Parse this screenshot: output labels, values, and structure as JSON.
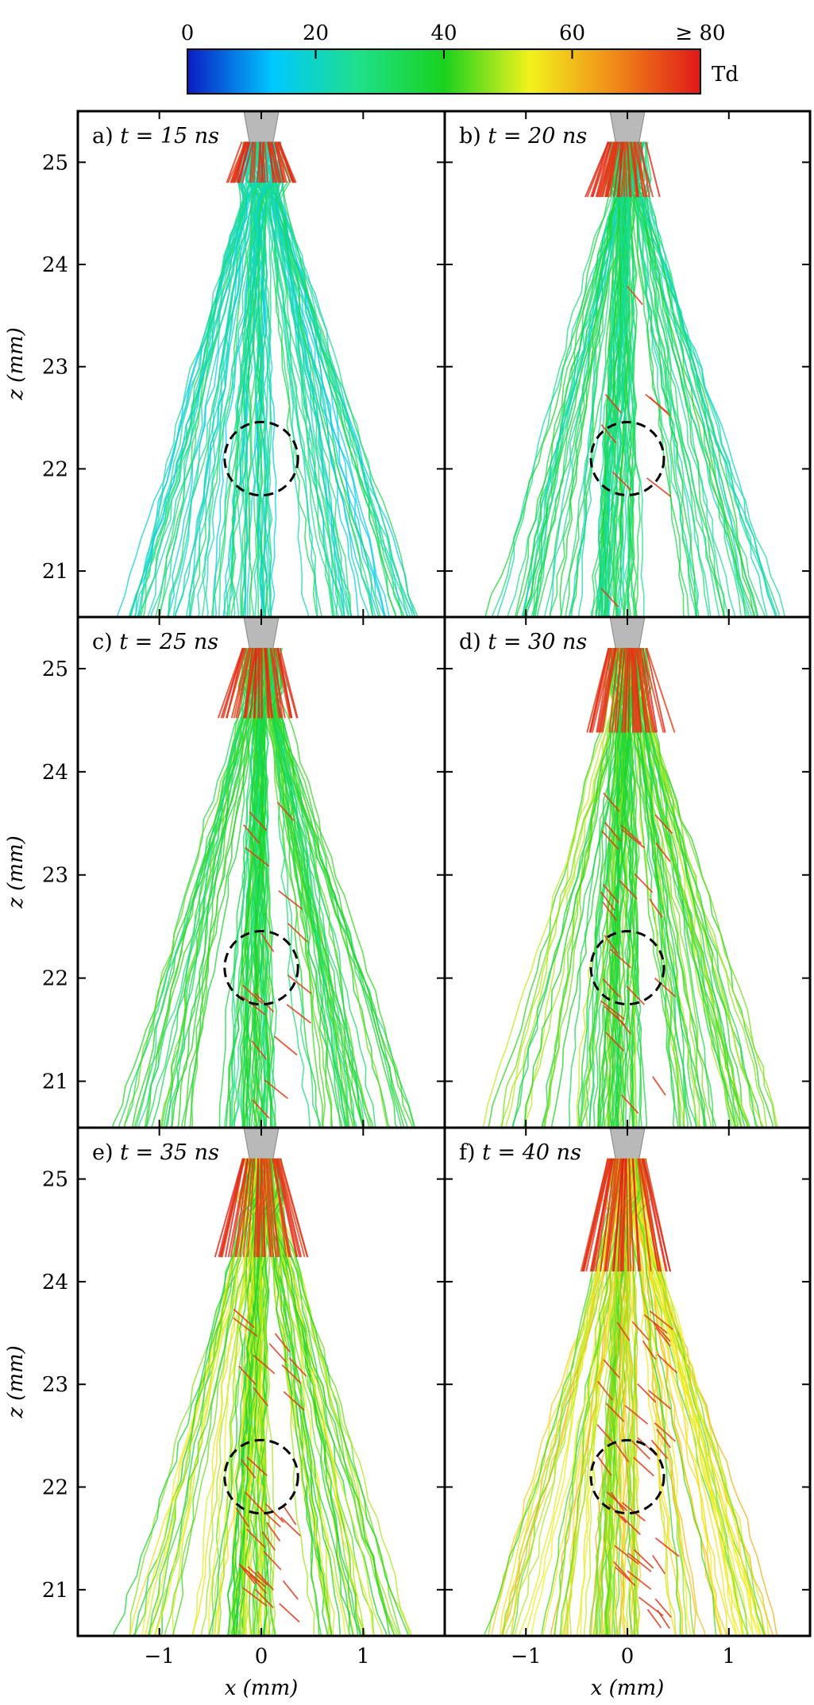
{
  "colorbar": {
    "unit": "Td",
    "tick_labels": [
      "0",
      "20",
      "40",
      "60",
      "≥ 80"
    ],
    "tick_values": [
      0,
      20,
      40,
      60,
      80
    ],
    "range": [
      0,
      80
    ],
    "colormap": [
      "#0a1cc4",
      "#00c8ff",
      "#1ee08a",
      "#19d21e",
      "#f2f21c",
      "#f08a18",
      "#e01818"
    ]
  },
  "axes": {
    "x_label": "x (mm)",
    "z_label": "z (mm)",
    "x_range": [
      -1.8,
      1.8
    ],
    "z_range": [
      20.55,
      25.5
    ],
    "x_ticks": [
      -1,
      0,
      1
    ],
    "x_tick_labels": [
      "−1",
      "0",
      "1"
    ],
    "z_ticks": [
      21,
      22,
      23,
      24,
      25
    ],
    "z_tick_labels": [
      "21",
      "22",
      "23",
      "24",
      "25"
    ]
  },
  "panels": [
    {
      "id": "a",
      "letter": "a)",
      "t_label": "t = 15 ns",
      "t_ns": 15
    },
    {
      "id": "b",
      "letter": "b)",
      "t_label": "t = 20 ns",
      "t_ns": 20
    },
    {
      "id": "c",
      "letter": "c)",
      "t_label": "t = 25 ns",
      "t_ns": 25
    },
    {
      "id": "d",
      "letter": "d)",
      "t_label": "t = 30 ns",
      "t_ns": 30
    },
    {
      "id": "e",
      "letter": "e)",
      "t_label": "t = 35 ns",
      "t_ns": 35
    },
    {
      "id": "f",
      "letter": "f)",
      "t_label": "t = 40 ns",
      "t_ns": 40
    }
  ],
  "highlight_circle": {
    "x_mm": 0.0,
    "z_mm": 22.1,
    "radius_mm": 0.36,
    "style": "dashed"
  },
  "colors": {
    "electrode": "#b9b9b9",
    "frame": "#000000",
    "circle": "#000000"
  }
}
